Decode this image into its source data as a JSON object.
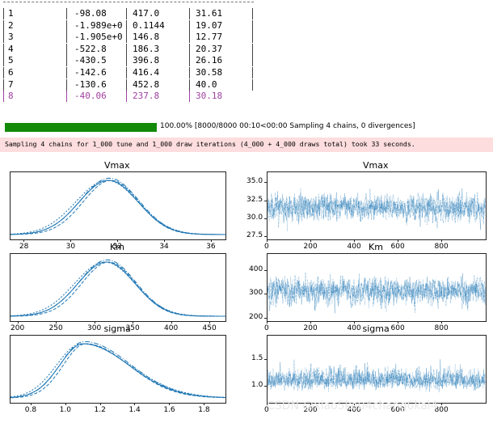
{
  "table": {
    "rows": [
      {
        "idx": "1",
        "c1": "-98.08",
        "c2": "417.0",
        "c3": "31.61",
        "highlight": false
      },
      {
        "idx": "2",
        "c1": "-1.989e+0",
        "c2": "0.1144",
        "c3": "19.07",
        "highlight": false
      },
      {
        "idx": "3",
        "c1": "-1.905e+0",
        "c2": "146.8",
        "c3": "12.77",
        "highlight": false
      },
      {
        "idx": "4",
        "c1": "-522.8",
        "c2": "186.3",
        "c3": "20.37",
        "highlight": false
      },
      {
        "idx": "5",
        "c1": "-430.5",
        "c2": "396.8",
        "c3": "26.16",
        "highlight": false
      },
      {
        "idx": "6",
        "c1": "-142.6",
        "c2": "416.4",
        "c3": "30.58",
        "highlight": false
      },
      {
        "idx": "7",
        "c1": "-130.6",
        "c2": "452.8",
        "c3": "40.0",
        "highlight": false
      },
      {
        "idx": "8",
        "c1": "-40.06",
        "c2": "237.8",
        "c3": "30.18",
        "highlight": true
      }
    ],
    "separator_char": "|",
    "highlight_color": "#a040a0"
  },
  "progress": {
    "fraction": 1.0,
    "text": "100.00% [8000/8000 00:10<00:00 Sampling 4 chains, 0 divergences]",
    "fill_color": "#138a07"
  },
  "stderr": {
    "text": "Sampling 4 chains for 1_000 tune and 1_000 draw iterations (4_000 + 4_000 draws total) took 33 seconds.",
    "bg_color": "#fddddd"
  },
  "plots": {
    "line_color": "#1f77b4",
    "kde": [
      {
        "title": "Vmax",
        "ticks": [
          "28",
          "30",
          "32",
          "34",
          "36"
        ],
        "range": [
          27.4,
          36.6
        ],
        "mean": 31.6,
        "sd": 1.25
      },
      {
        "title": "Km",
        "ticks": [
          "200",
          "250",
          "300",
          "350",
          "400",
          "450"
        ],
        "range": [
          190,
          470
        ],
        "mean": 315,
        "sd": 37
      },
      {
        "title": "sigma",
        "ticks": [
          "0.8",
          "1.0",
          "1.2",
          "1.4",
          "1.6",
          "1.8"
        ],
        "range": [
          0.68,
          1.92
        ],
        "mean": 1.1,
        "sd": 0.17
      }
    ],
    "trace": [
      {
        "title": "Vmax",
        "xticks": [
          "0",
          "200",
          "400",
          "600",
          "800"
        ],
        "yticks": [
          "27.5",
          "30.0",
          "32.5",
          "35.0"
        ],
        "yrange": [
          27.2,
          36.5
        ],
        "mean": 31.6,
        "sd": 1.25
      },
      {
        "title": "Km",
        "xticks": [
          "0",
          "200",
          "400",
          "600",
          "800"
        ],
        "yticks": [
          "200",
          "300",
          "400"
        ],
        "yrange": [
          190,
          470
        ],
        "mean": 315,
        "sd": 37
      },
      {
        "title": "sigma",
        "xticks": [
          "0",
          "200",
          "400",
          "600",
          "800"
        ],
        "yticks": [
          "1.0",
          "1.5"
        ],
        "yrange": [
          0.7,
          1.95
        ],
        "mean": 1.1,
        "sd": 0.17
      }
    ],
    "draws": 1000
  },
  "watermark": "CSDN @xiao5kou4chang6kai4"
}
